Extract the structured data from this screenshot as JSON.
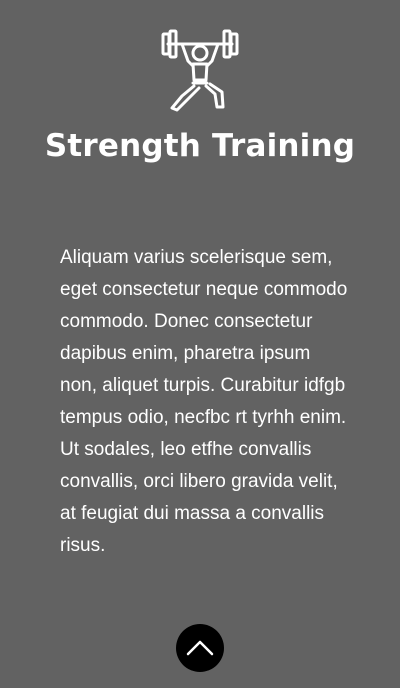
{
  "hero": {
    "icon": "weightlifter-icon",
    "title": "Strength Training"
  },
  "content": {
    "paragraph_1": "Aliquam varius scelerisque sem, eget consectetur neque commodo commodo. Donec consectetur dapibus enim, pharetra ipsum non, aliquet turpis. Curabitur idfgb tempus odio, necfbc rt tyrhh enim.",
    "paragraph_2": "Ut sodales, leo etfhe convallis convallis, orci libero gravida velit, at feugiat dui massa a convallis risus."
  },
  "scroll_top": {
    "icon": "chevron-up-icon"
  },
  "colors": {
    "background": "#626262",
    "text": "#ffffff",
    "button": "#000000"
  }
}
